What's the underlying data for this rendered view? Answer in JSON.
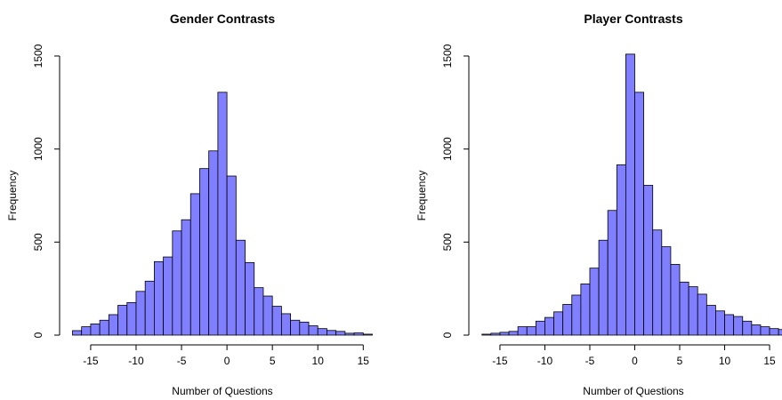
{
  "chart_data": [
    {
      "type": "histogram",
      "title": "Gender Contrasts",
      "x_label": "Number of Questions",
      "y_label": "Frequency",
      "color": "#7f7fff",
      "bins": [
        -17,
        -16,
        -15,
        -14,
        -13,
        -12,
        -11,
        -10,
        -9,
        -8,
        -7,
        -6,
        -5,
        -4,
        -3,
        -2,
        -1,
        0,
        1,
        2,
        3,
        4,
        5,
        6,
        7,
        8,
        9,
        10,
        11,
        12,
        13,
        14,
        15,
        16
      ],
      "values": [
        24,
        45,
        60,
        80,
        110,
        160,
        175,
        235,
        290,
        395,
        420,
        560,
        620,
        760,
        895,
        990,
        1305,
        855,
        510,
        390,
        255,
        210,
        155,
        115,
        80,
        70,
        50,
        35,
        25,
        20,
        10,
        12,
        5
      ],
      "xlim": [
        -18.32,
        17.32
      ],
      "xticks": [
        -15,
        -10,
        -5,
        0,
        5,
        10,
        15
      ],
      "ylim": [
        0,
        1500
      ],
      "yticks": [
        0,
        500,
        1000,
        1500
      ]
    },
    {
      "type": "histogram",
      "title": "Player Contrasts",
      "x_label": "Number of Questions",
      "y_label": "Frequency",
      "color": "#7f7fff",
      "bins": [
        -17,
        -16,
        -15,
        -14,
        -13,
        -12,
        -11,
        -10,
        -9,
        -8,
        -7,
        -6,
        -5,
        -4,
        -3,
        -2,
        -1,
        0,
        1,
        2,
        3,
        4,
        5,
        6,
        7,
        8,
        9,
        10,
        11,
        12,
        13,
        14,
        15,
        16,
        17
      ],
      "values": [
        5,
        10,
        15,
        20,
        45,
        45,
        75,
        95,
        125,
        165,
        215,
        275,
        360,
        510,
        670,
        915,
        1510,
        1305,
        805,
        565,
        475,
        380,
        285,
        260,
        220,
        160,
        130,
        110,
        100,
        75,
        55,
        45,
        35,
        30
      ],
      "xlim": [
        -18.36,
        18.36
      ],
      "xticks": [
        -15,
        -10,
        -5,
        0,
        5,
        10,
        15
      ],
      "ylim": [
        0,
        1500
      ],
      "yticks": [
        0,
        500,
        1000,
        1500
      ]
    }
  ]
}
